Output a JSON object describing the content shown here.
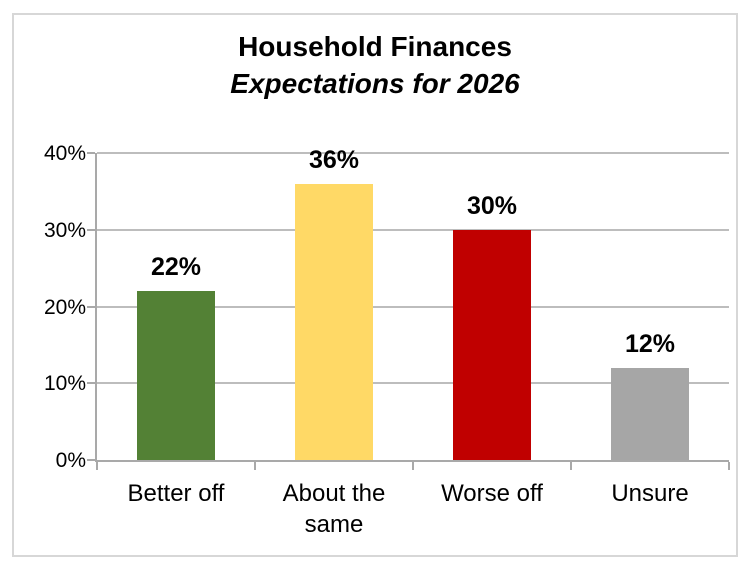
{
  "chart": {
    "title": "Household Finances",
    "subtitle": "Expectations for 2026"
  },
  "chart_data": {
    "type": "bar",
    "title": "Household Finances",
    "subtitle": "Expectations for 2026",
    "categories": [
      "Better off",
      "About the\nsame",
      "Worse off",
      "Unsure"
    ],
    "values": [
      22,
      36,
      30,
      12
    ],
    "data_labels": [
      "22%",
      "36%",
      "30%",
      "12%"
    ],
    "bar_colors": [
      "#538135",
      "#FFD966",
      "#C00000",
      "#A6A6A6"
    ],
    "xlabel": "",
    "ylabel": "",
    "ylim": [
      0,
      40
    ],
    "ytick_values": [
      0,
      10,
      20,
      30,
      40
    ],
    "ytick_labels": [
      "0%",
      "10%",
      "20%",
      "30%",
      "40%"
    ],
    "grid": true,
    "legend": false
  },
  "colors": {
    "gridline": "#bdbdbd",
    "axis": "#a9a9a9",
    "frame_border": "#d7d7d7",
    "background": "#ffffff",
    "text": "#000000"
  }
}
